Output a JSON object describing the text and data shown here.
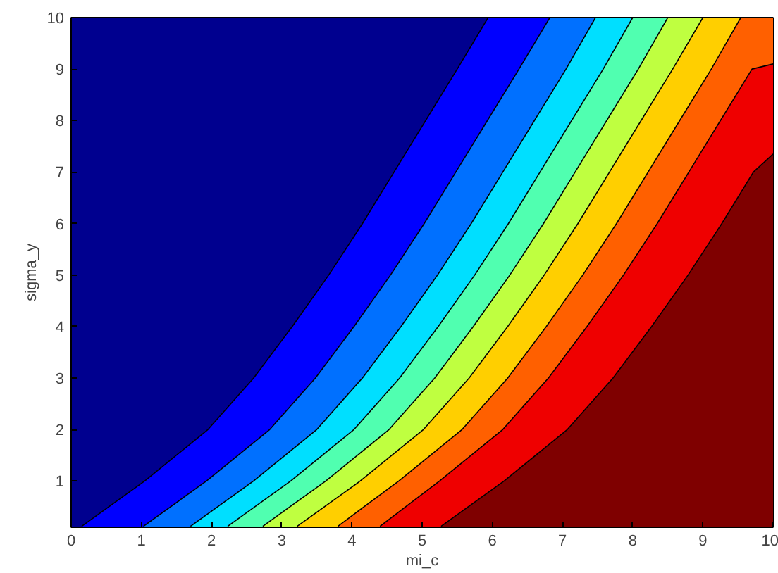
{
  "chart_data": {
    "type": "area",
    "xlabel": "mi_c",
    "ylabel": "sigma_y",
    "xlim": [
      0,
      10
    ],
    "ylim": [
      0.1,
      10
    ],
    "xticks": [
      0,
      1,
      2,
      3,
      4,
      5,
      6,
      7,
      8,
      9,
      10
    ],
    "yticks": [
      1,
      2,
      3,
      4,
      5,
      6,
      7,
      8,
      9,
      10
    ],
    "grid": false,
    "colors": [
      "#00008f",
      "#0000ff",
      "#0070ff",
      "#00dfff",
      "#50ffb0",
      "#bfff40",
      "#ffcf00",
      "#ff6000",
      "#ef0000",
      "#7f0000"
    ],
    "series": [
      {
        "color": "#000000",
        "x": [
          0.15,
          1.05,
          1.95,
          2.6,
          3.15,
          3.67,
          4.15,
          4.6,
          5.05,
          5.5,
          5.94,
          10
        ],
        "values": [
          0.12,
          1,
          2,
          3,
          4,
          5,
          6,
          7,
          8,
          9,
          10,
          10
        ]
      },
      {
        "color": "#000000",
        "x": [
          1.03,
          1.93,
          2.83,
          3.48,
          4.03,
          4.55,
          5.03,
          5.48,
          5.93,
          6.38,
          6.82,
          10
        ],
        "values": [
          0.12,
          1,
          2,
          3,
          4,
          5,
          6,
          7,
          8,
          9,
          10,
          10
        ]
      },
      {
        "color": "#000000",
        "x": [
          1.7,
          2.6,
          3.5,
          4.15,
          4.7,
          5.22,
          5.7,
          6.15,
          6.6,
          7.05,
          7.47,
          10
        ],
        "values": [
          0.12,
          1,
          2,
          3,
          4,
          5,
          6,
          7,
          8,
          9,
          10,
          10
        ]
      },
      {
        "color": "#000000",
        "x": [
          2.23,
          3.13,
          4.03,
          4.68,
          5.23,
          5.75,
          6.23,
          6.68,
          7.13,
          7.58,
          8.0,
          10
        ],
        "values": [
          0.12,
          1,
          2,
          3,
          4,
          5,
          6,
          7,
          8,
          9,
          10,
          10
        ]
      },
      {
        "color": "#000000",
        "x": [
          2.73,
          3.63,
          4.53,
          5.18,
          5.73,
          6.25,
          6.73,
          7.18,
          7.63,
          8.08,
          8.5,
          10
        ],
        "values": [
          0.12,
          1,
          2,
          3,
          4,
          5,
          6,
          7,
          8,
          9,
          10,
          10
        ]
      },
      {
        "color": "#000000",
        "x": [
          3.22,
          4.12,
          5.02,
          5.67,
          6.22,
          6.74,
          7.22,
          7.67,
          8.12,
          8.57,
          9.0,
          10
        ],
        "values": [
          0.12,
          1,
          2,
          3,
          4,
          5,
          6,
          7,
          8,
          9,
          10,
          10
        ]
      },
      {
        "color": "#000000",
        "x": [
          3.8,
          4.67,
          5.57,
          6.22,
          6.77,
          7.29,
          7.77,
          8.22,
          8.67,
          9.12,
          9.54,
          10
        ],
        "values": [
          0.12,
          1,
          2,
          3,
          4,
          5,
          6,
          7,
          8,
          9,
          10,
          10
        ]
      },
      {
        "color": "#000000",
        "x": [
          4.4,
          5.25,
          6.15,
          6.8,
          7.35,
          7.87,
          8.35,
          8.8,
          9.25,
          9.7,
          10.0
        ],
        "values": [
          0.12,
          1,
          2,
          3,
          4,
          5,
          6,
          7,
          8,
          9,
          9.1
        ]
      },
      {
        "color": "#000000",
        "x": [
          5.27,
          6.17,
          7.07,
          7.72,
          8.27,
          8.79,
          9.27,
          9.72,
          10.0
        ],
        "values": [
          0.12,
          1,
          2,
          3,
          4,
          5,
          6,
          7,
          7.35
        ]
      }
    ]
  }
}
